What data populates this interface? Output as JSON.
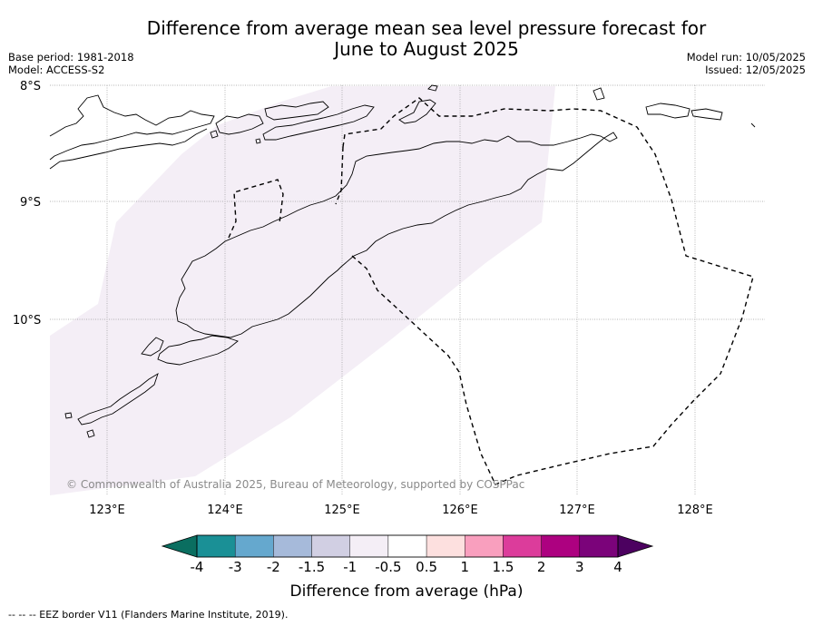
{
  "title_line1": "Difference from average mean sea level pressure forecast for",
  "title_line2": "June to August 2025",
  "base_period": "Base period: 1981-2018",
  "model": "Model: ACCESS-S2",
  "model_run": "Model run: 10/05/2025",
  "issued": "Issued: 12/05/2025",
  "copyright": "© Commonwealth of Australia 2025, Bureau of Meteorology, supported by COSPPac",
  "footer": "--  --  -- EEZ border V11 (Flanders Marine Institute, 2019).",
  "map": {
    "lat_labels": [
      "8°S",
      "9°S",
      "10°S"
    ],
    "lon_labels": [
      "123°E",
      "124°E",
      "125°E",
      "126°E",
      "127°E",
      "128°E"
    ],
    "shaded_category": "-1 to -0.5",
    "shaded_color": "#f4eef6"
  },
  "colorbar": {
    "title": "Difference from average (hPa)",
    "ticks": [
      "-4",
      "-3",
      "-2",
      "-1.5",
      "-1",
      "-0.5",
      "0.5",
      "1",
      "1.5",
      "2",
      "3",
      "4"
    ],
    "colors": [
      "#1a9096",
      "#65a8ce",
      "#a6bada",
      "#d1cfe3",
      "#f4eef6",
      "#ffffff",
      "#fde0df",
      "#f99fbe",
      "#dc3c9b",
      "#ad0180",
      "#7b037a"
    ],
    "low_extend_color": "#0a6e60",
    "high_extend_color": "#4c0160"
  }
}
